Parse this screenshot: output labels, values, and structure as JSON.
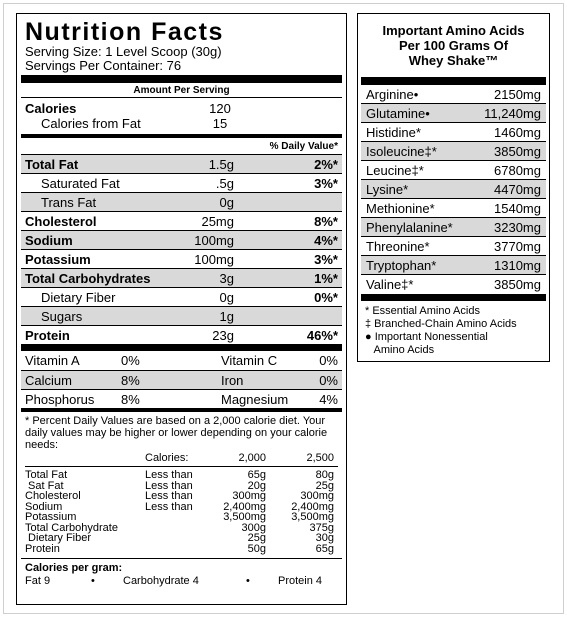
{
  "panel": {
    "title": "Nutrition Facts",
    "serving_size": "Serving Size: 1 Level Scoop (30g)",
    "servings_per_container": "Servings Per Container: 76",
    "amount_per_serving": "Amount Per Serving",
    "calories": {
      "label": "Calories",
      "value": "120"
    },
    "calories_fat": {
      "label": "Calories from Fat",
      "value": "15"
    },
    "daily_value_header": "% Daily Value*",
    "nutrients": [
      {
        "label": "Total Fat",
        "amount": "1.5g",
        "pct": "2%*",
        "bold": true,
        "indent": false,
        "shade": true
      },
      {
        "label": "Saturated Fat",
        "amount": ".5g",
        "pct": "3%*",
        "bold": false,
        "indent": true,
        "shade": false
      },
      {
        "label": "Trans Fat",
        "amount": "0g",
        "pct": "",
        "bold": false,
        "indent": true,
        "shade": true
      },
      {
        "label": "Cholesterol",
        "amount": "25mg",
        "pct": "8%*",
        "bold": true,
        "indent": false,
        "shade": false
      },
      {
        "label": "Sodium",
        "amount": "100mg",
        "pct": "4%*",
        "bold": true,
        "indent": false,
        "shade": true
      },
      {
        "label": "Potassium",
        "amount": "100mg",
        "pct": "3%*",
        "bold": true,
        "indent": false,
        "shade": false
      },
      {
        "label": "Total Carbohydrates",
        "amount": "3g",
        "pct": "1%*",
        "bold": true,
        "indent": false,
        "shade": true
      },
      {
        "label": "Dietary Fiber",
        "amount": "0g",
        "pct": "0%*",
        "bold": false,
        "indent": true,
        "shade": false
      },
      {
        "label": "Sugars",
        "amount": "1g",
        "pct": "",
        "bold": false,
        "indent": true,
        "shade": true
      },
      {
        "label": "Protein",
        "amount": "23g",
        "pct": "46%*",
        "bold": true,
        "indent": false,
        "shade": false
      }
    ],
    "vitamins": [
      {
        "a_label": "Vitamin A",
        "a_pct": "0%",
        "b_label": "Vitamin C",
        "b_pct": "0%",
        "shade": false
      },
      {
        "a_label": "Calcium",
        "a_pct": "8%",
        "b_label": "Iron",
        "b_pct": "0%",
        "shade": true
      },
      {
        "a_label": "Phosphorus",
        "a_pct": "8%",
        "b_label": "Magnesium",
        "b_pct": "4%",
        "shade": false
      }
    ],
    "footnote": "* Percent Daily Values are based on a 2,000 calorie diet. Your daily values may be higher or lower depending on your calorie needs:",
    "footnote_table": {
      "calories_label": "Calories:",
      "col_2000": "2,000",
      "col_2500": "2,500",
      "rows": [
        {
          "label": "Total Fat",
          "cmp": "Less than",
          "v1": "65g",
          "v2": "80g"
        },
        {
          "label": " Sat Fat",
          "cmp": "Less than",
          "v1": "20g",
          "v2": "25g"
        },
        {
          "label": "Cholesterol",
          "cmp": "Less than",
          "v1": "300mg",
          "v2": "300mg"
        },
        {
          "label": "Sodium",
          "cmp": "Less than",
          "v1": "2,400mg",
          "v2": "2,400mg"
        },
        {
          "label": "Potassium",
          "cmp": "",
          "v1": "3,500mg",
          "v2": "3,500mg"
        },
        {
          "label": "Total Carbohydrate",
          "cmp": "",
          "v1": "300g",
          "v2": "375g"
        },
        {
          "label": " Dietary Fiber",
          "cmp": "",
          "v1": "25g",
          "v2": "30g"
        },
        {
          "label": "Protein",
          "cmp": "",
          "v1": "50g",
          "v2": "65g"
        }
      ]
    },
    "calories_per_gram": {
      "title": "Calories per gram:",
      "fat": "Fat  9",
      "bullet": "•",
      "carb": "Carbohydrate  4",
      "protein": "Protein  4"
    }
  },
  "amino": {
    "title_line1": "Important Amino Acids",
    "title_line2": "Per 100 Grams Of",
    "title_line3": "Whey Shake™",
    "rows": [
      {
        "name": "Arginine•",
        "value": "2150mg",
        "shade": false
      },
      {
        "name": "Glutamine•",
        "value": "11,240mg",
        "shade": true
      },
      {
        "name": "Histidine*",
        "value": "1460mg",
        "shade": false
      },
      {
        "name": "Isoleucine‡*",
        "value": "3850mg",
        "shade": true
      },
      {
        "name": "Leucine‡*",
        "value": "6780mg",
        "shade": false
      },
      {
        "name": "Lysine*",
        "value": "4470mg",
        "shade": true
      },
      {
        "name": "Methionine*",
        "value": "1540mg",
        "shade": false
      },
      {
        "name": "Phenylalanine*",
        "value": "3230mg",
        "shade": true
      },
      {
        "name": "Threonine*",
        "value": "3770mg",
        "shade": false
      },
      {
        "name": "Tryptophan*",
        "value": "1310mg",
        "shade": true
      },
      {
        "name": "Valine‡*",
        "value": "3850mg",
        "shade": false
      }
    ],
    "legend": [
      "* Essential Amino Acids",
      "‡ Branched-Chain Amino Acids",
      "● Important Nonessential",
      "   Amino Acids"
    ]
  }
}
